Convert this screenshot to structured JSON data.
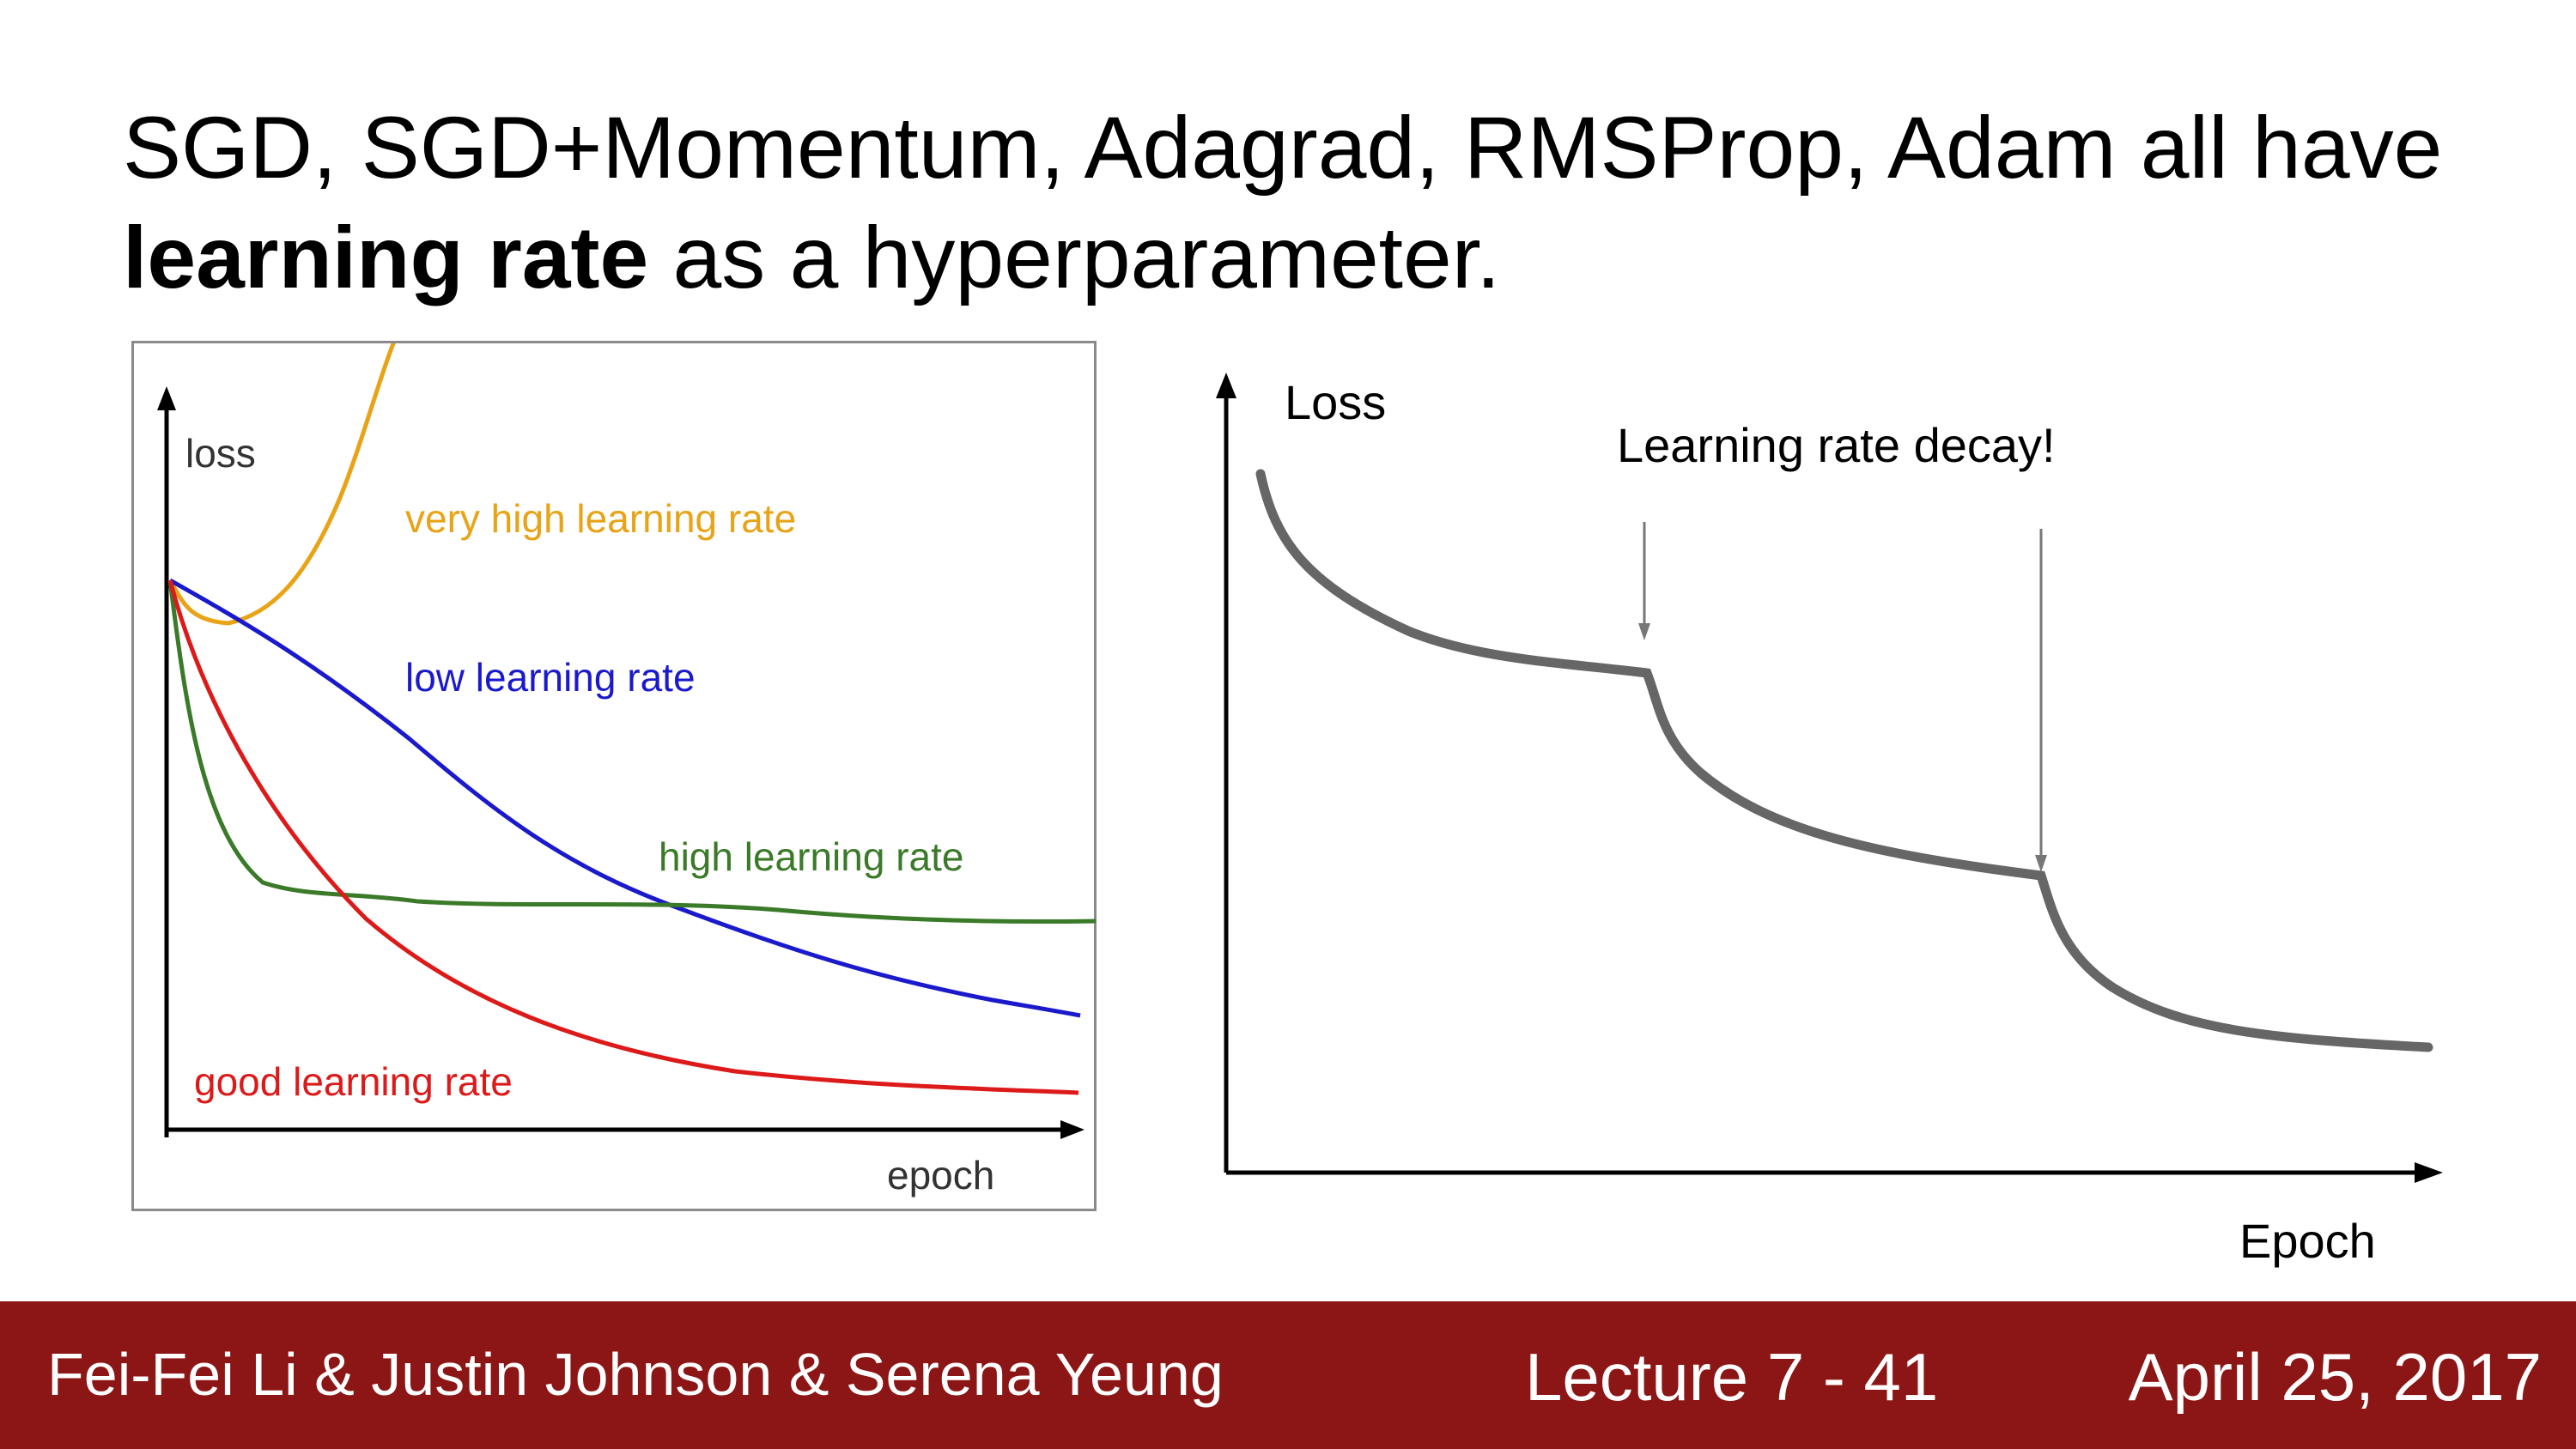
{
  "slide": {
    "title_part1": "SGD, SGD+Momentum, Adagrad, RMSProp, Adam all have",
    "title_bold": "learning rate",
    "title_part2": " as a hyperparameter."
  },
  "footer": {
    "authors": "Fei-Fei Li & Justin Johnson & Serena Yeung",
    "lecture": "Lecture 7 - 41",
    "date": "April 25, 2017",
    "background_color": "#8c1515"
  },
  "chart_data": [
    {
      "type": "line",
      "ylabel": "loss",
      "xlabel": "epoch",
      "series": [
        {
          "name": "very high learning rate",
          "color": "#e8a317",
          "label": "very high learning rate"
        },
        {
          "name": "low learning rate",
          "color": "#1a1acc",
          "label": "low learning rate"
        },
        {
          "name": "high learning rate",
          "color": "#3a7a28",
          "label": "high learning rate"
        },
        {
          "name": "good learning rate",
          "color": "#dd1a1a",
          "label": "good learning rate"
        }
      ],
      "grid": false
    },
    {
      "type": "line",
      "ylabel": "Loss",
      "xlabel": "Epoch",
      "annotation": "Learning rate decay!",
      "series": [
        {
          "color": "#666666"
        }
      ],
      "grid": false
    }
  ]
}
